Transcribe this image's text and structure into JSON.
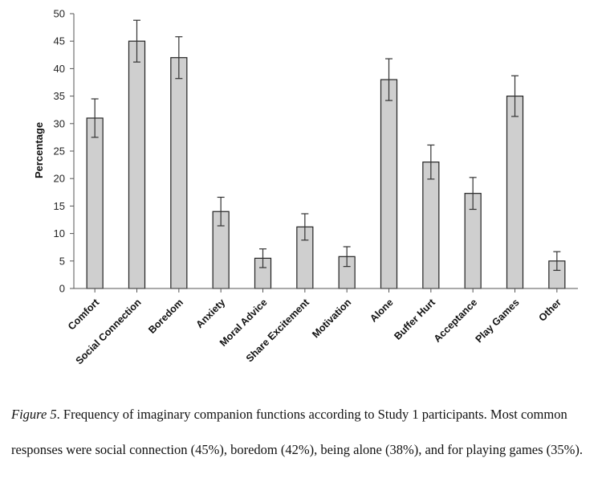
{
  "chart_data": {
    "type": "bar",
    "ylabel": "Percentage",
    "xlabel": "",
    "ylim": [
      0,
      50
    ],
    "yticks": [
      0,
      5,
      10,
      15,
      20,
      25,
      30,
      35,
      40,
      45,
      50
    ],
    "categories": [
      "Comfort",
      "Social Connection",
      "Boredom",
      "Anxiety",
      "Moral Advice",
      "Share Excitement",
      "Motivation",
      "Alone",
      "Buffer Hurt",
      "Acceptance",
      "Play Games",
      "Other"
    ],
    "values": [
      31,
      45,
      42,
      14,
      5.5,
      11.2,
      5.8,
      38,
      23,
      17.3,
      35,
      5
    ],
    "error": [
      3.5,
      3.8,
      3.8,
      2.6,
      1.7,
      2.4,
      1.8,
      3.8,
      3.1,
      2.9,
      3.7,
      1.7
    ],
    "grid": false,
    "bar_color": "#cfcfcf"
  },
  "caption": {
    "label": "Figure 5",
    "text": ". Frequency of imaginary companion functions according to Study 1 participants. Most common responses were social connection (45%), boredom (42%), being alone (38%), and for playing games (35%)."
  }
}
